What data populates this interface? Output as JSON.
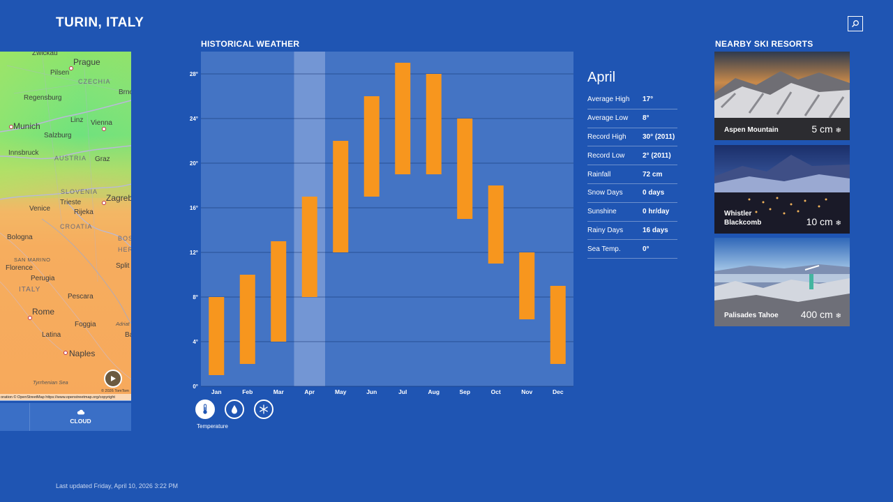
{
  "header": {
    "city": "TURIN, ITALY",
    "search_icon": "search-icon"
  },
  "map": {
    "labels": {
      "zwickau": "Zwickau",
      "prague": "Prague",
      "pilsen": "Pilsen",
      "czechia": "CZECHIA",
      "brno": "Brno",
      "regensburg": "Regensburg",
      "munich": "Munich",
      "linz": "Linz",
      "vienna": "Vienna",
      "salzburg": "Salzburg",
      "innsbruck": "Innsbruck",
      "austria": "AUSTRIA",
      "graz": "Graz",
      "slovenia": "SLOVENIA",
      "zagreb": "Zagreb",
      "trieste": "Trieste",
      "venice": "Venice",
      "rijeka": "Rijeka",
      "croatia": "CROATIA",
      "bosnia": "BOSNIA",
      "herz": "HER",
      "bologna": "Bologna",
      "san_marino": "SAN MARINO",
      "split": "Split",
      "florence": "Florence",
      "perugia": "Perugia",
      "italy": "ITALY",
      "pescara": "Pescara",
      "rome": "Rome",
      "foggia": "Foggia",
      "adriatic": "Adriat",
      "latina": "Latina",
      "ba": "Ba",
      "naples": "Naples",
      "tyrrhenian": "Tyrrhenian Sea"
    },
    "tomtom": "© 2026 TomTom",
    "attribution": "oration © OpenStreetMap https://www.openstreetmap.org/copyright",
    "tab_label": "CLOUD",
    "tab_icon": "cloud-icon",
    "play_icon": "play-icon"
  },
  "historical": {
    "title": "HISTORICAL WEATHER",
    "active_icon_label": "Temperature",
    "icons": [
      "thermometer-icon",
      "raindrop-icon",
      "snowflake-icon"
    ]
  },
  "chart_data": {
    "type": "bar",
    "subtype": "range",
    "categories": [
      "Jan",
      "Feb",
      "Mar",
      "Apr",
      "May",
      "Jun",
      "Jul",
      "Aug",
      "Sep",
      "Oct",
      "Nov",
      "Dec"
    ],
    "low": [
      1,
      2,
      4,
      8,
      12,
      17,
      19,
      19,
      15,
      11,
      6,
      2
    ],
    "high": [
      8,
      10,
      13,
      17,
      22,
      26,
      29,
      28,
      24,
      18,
      12,
      9
    ],
    "y_ticks": [
      "0°",
      "4°",
      "8°",
      "12°",
      "16°",
      "20°",
      "24°",
      "28°"
    ],
    "ylim": [
      0,
      30
    ],
    "highlighted_category": "Apr",
    "bar_color": "#f7961e",
    "grid": true
  },
  "details": {
    "month": "April",
    "rows": [
      {
        "key": "Average High",
        "value": "17°"
      },
      {
        "key": "Average Low",
        "value": "8°"
      },
      {
        "key": "Record High",
        "value": "30° (2011)"
      },
      {
        "key": "Record Low",
        "value": "2° (2011)"
      },
      {
        "key": "Rainfall",
        "value": "72 cm"
      },
      {
        "key": "Snow Days",
        "value": "0 days"
      },
      {
        "key": "Sunshine",
        "value": "0 hr/day"
      },
      {
        "key": "Rainy Days",
        "value": "16 days"
      },
      {
        "key": "Sea Temp.",
        "value": "0°"
      }
    ]
  },
  "resorts": {
    "title": "NEARBY SKI RESORTS",
    "items": [
      {
        "name": "Aspen Mountain",
        "snow": "5 cm"
      },
      {
        "name": "Whistler\nBlackcomb",
        "snow": "10 cm"
      },
      {
        "name": "Palisades Tahoe",
        "snow": "400 cm"
      }
    ]
  },
  "footer": {
    "updated": "Last updated Friday, April 10, 2026 3:22 PM"
  }
}
